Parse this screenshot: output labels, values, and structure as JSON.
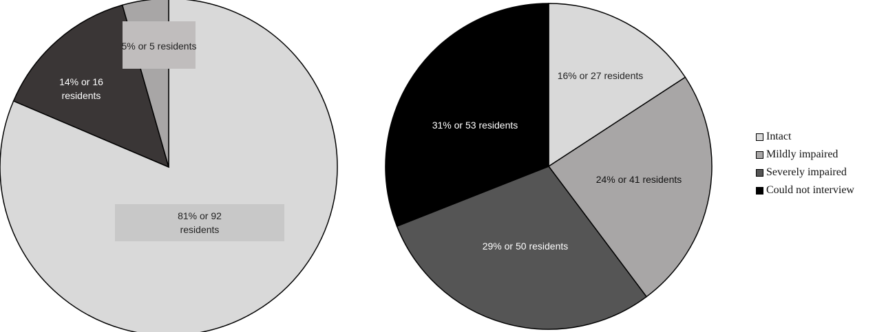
{
  "chart_data": [
    {
      "type": "pie",
      "title": "",
      "slices": [
        {
          "label": "Intact",
          "percent": 81,
          "value": 92,
          "text": "81% or 92 residents",
          "color": "#d9d9d9"
        },
        {
          "label": "Severely impaired",
          "percent": 14,
          "value": 16,
          "text": "14% or 16 residents",
          "color": "#3a3636"
        },
        {
          "label": "Mildly impaired",
          "percent": 5,
          "value": 5,
          "text": "5% or 5 residents",
          "color": "#a8a6a6"
        }
      ]
    },
    {
      "type": "pie",
      "title": "",
      "slices": [
        {
          "label": "Intact",
          "percent": 16,
          "value": 27,
          "text": "16% or 27 residents",
          "color": "#d9d9d9"
        },
        {
          "label": "Mildly impaired",
          "percent": 24,
          "value": 41,
          "text": "24% or 41 residents",
          "color": "#a8a6a6"
        },
        {
          "label": "Severely impaired",
          "percent": 29,
          "value": 50,
          "text": "29% or 50 residents",
          "color": "#555555"
        },
        {
          "label": "Could not interview",
          "percent": 31,
          "value": 53,
          "text": "31% or 53 residents",
          "color": "#000000"
        }
      ]
    }
  ],
  "legend": {
    "placement": "right",
    "items": [
      {
        "label": "Intact",
        "color": "#d9d9d9"
      },
      {
        "label": "Mildly impaired",
        "color": "#a8a6a6"
      },
      {
        "label": "Severely impaired",
        "color": "#555555"
      },
      {
        "label": "Could not interview",
        "color": "#000000"
      }
    ]
  }
}
